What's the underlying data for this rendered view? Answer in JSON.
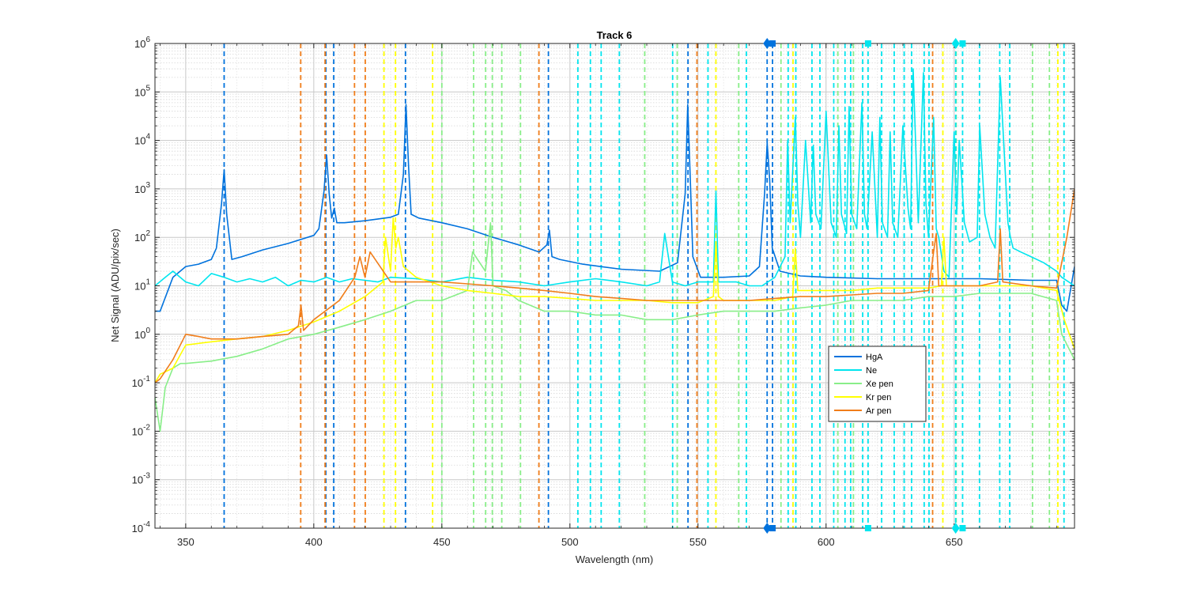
{
  "chart_data": {
    "type": "line",
    "title": "Track 6",
    "xlabel": "Wavelength (nm)",
    "ylabel": "Net Signal (ADU/pix/sec)",
    "xlim": [
      338,
      697
    ],
    "ylim": [
      0.0001,
      1000000
    ],
    "yscale": "log",
    "grid": true,
    "legend_position": "lower-right",
    "x_ticks": [
      {
        "value": 350,
        "label": "350"
      },
      {
        "value": 400,
        "label": "400"
      },
      {
        "value": 450,
        "label": "450"
      },
      {
        "value": 500,
        "label": "500"
      },
      {
        "value": 550,
        "label": "550"
      },
      {
        "value": 600,
        "label": "600"
      },
      {
        "value": 650,
        "label": "650"
      }
    ],
    "y_ticks": [
      {
        "value": 0.0001,
        "base": "10",
        "exp": "-4"
      },
      {
        "value": 0.001,
        "base": "10",
        "exp": "-3"
      },
      {
        "value": 0.01,
        "base": "10",
        "exp": "-2"
      },
      {
        "value": 0.1,
        "base": "10",
        "exp": "-1"
      },
      {
        "value": 1,
        "base": "10",
        "exp": "0"
      },
      {
        "value": 10,
        "base": "10",
        "exp": "1"
      },
      {
        "value": 100,
        "base": "10",
        "exp": "2"
      },
      {
        "value": 1000,
        "base": "10",
        "exp": "3"
      },
      {
        "value": 10000,
        "base": "10",
        "exp": "4"
      },
      {
        "value": 100000,
        "base": "10",
        "exp": "5"
      },
      {
        "value": 1000000,
        "base": "10",
        "exp": "6"
      }
    ],
    "series": [
      {
        "name": "HgA",
        "color": "#0072DD",
        "x": [
          338,
          340,
          345,
          350,
          355,
          360,
          362,
          364,
          365,
          366,
          368,
          372,
          380,
          390,
          400,
          402,
          404,
          405,
          406,
          407,
          408,
          409,
          412,
          420,
          430,
          433,
          435,
          436,
          437,
          438,
          441,
          450,
          460,
          470,
          480,
          488,
          491,
          492,
          493,
          496,
          505,
          520,
          535,
          542,
          545,
          546,
          547,
          548,
          551,
          560,
          570,
          574,
          576,
          577,
          578,
          579,
          582,
          590,
          600,
          620,
          640,
          660,
          680,
          690,
          692,
          694,
          697
        ],
        "y": [
          3,
          3,
          15,
          25,
          28,
          35,
          60,
          500,
          2500,
          300,
          35,
          40,
          55,
          75,
          110,
          150,
          900,
          5000,
          800,
          250,
          400,
          200,
          200,
          220,
          260,
          300,
          2000,
          55000,
          3000,
          300,
          250,
          200,
          150,
          100,
          70,
          50,
          70,
          140,
          40,
          35,
          28,
          22,
          20,
          30,
          800,
          55000,
          1500,
          40,
          15,
          15,
          16,
          25,
          800,
          9000,
          1500,
          60,
          20,
          16,
          15,
          14,
          14,
          14,
          13,
          13,
          4,
          3,
          25
        ]
      },
      {
        "name": "Ne",
        "color": "#00E5EE",
        "x": [
          338,
          342,
          345,
          350,
          355,
          360,
          365,
          370,
          375,
          380,
          385,
          390,
          395,
          400,
          405,
          410,
          415,
          420,
          425,
          430,
          440,
          450,
          460,
          470,
          480,
          490,
          500,
          510,
          520,
          530,
          535,
          537,
          540,
          545,
          550,
          556,
          557,
          558,
          565,
          570,
          575,
          580,
          584,
          585,
          586,
          588,
          589,
          590,
          592,
          594,
          595,
          596,
          598,
          600,
          602,
          604,
          605,
          606,
          608,
          609,
          610,
          612,
          614,
          615,
          616,
          618,
          620,
          621,
          622,
          624,
          625,
          626,
          628,
          630,
          632,
          633,
          634,
          636,
          638,
          639,
          640,
          642,
          643,
          644,
          646,
          648,
          650,
          651,
          652,
          654,
          656,
          659,
          660,
          662,
          664,
          666,
          668,
          671,
          672,
          673,
          676,
          680,
          685,
          690,
          692,
          697
        ],
        "y": [
          10,
          15,
          20,
          12,
          10,
          18,
          15,
          12,
          14,
          12,
          15,
          10,
          13,
          12,
          15,
          12,
          14,
          13,
          12,
          15,
          14,
          12,
          15,
          13,
          12,
          10,
          12,
          14,
          12,
          10,
          12,
          120,
          12,
          10,
          12,
          12,
          900,
          12,
          12,
          10,
          10,
          15,
          40,
          10000,
          200,
          30000,
          500,
          100,
          10000,
          200,
          8000,
          300,
          150,
          40000,
          200,
          100,
          20000,
          300,
          120,
          50000,
          300,
          150,
          60000,
          300,
          150,
          15000,
          100,
          30000,
          200,
          100,
          15000,
          200,
          100,
          20000,
          400,
          150,
          300000,
          200,
          250000,
          500,
          100,
          30000,
          150,
          100,
          20,
          15,
          15000,
          300,
          10000,
          200,
          80,
          100,
          20000,
          300,
          100,
          60,
          200000,
          200,
          100,
          60,
          50,
          40,
          30,
          20,
          15,
          10
        ]
      },
      {
        "name": "Xe pen",
        "color": "#88EE88",
        "x": [
          338,
          340,
          342,
          345,
          348,
          350,
          360,
          370,
          380,
          390,
          400,
          410,
          420,
          430,
          440,
          450,
          460,
          462,
          467,
          469,
          470,
          475,
          480,
          490,
          500,
          510,
          520,
          530,
          540,
          550,
          560,
          570,
          580,
          590,
          600,
          610,
          620,
          630,
          640,
          650,
          660,
          670,
          680,
          690,
          692,
          697
        ],
        "y": [
          0.05,
          0.01,
          0.08,
          0.2,
          0.25,
          0.25,
          0.28,
          0.35,
          0.5,
          0.8,
          1.0,
          1.4,
          2,
          3,
          5,
          5,
          8,
          50,
          20,
          200,
          10,
          8,
          5,
          3,
          3,
          2.5,
          2.5,
          2,
          2,
          2.5,
          3,
          3,
          3,
          3.5,
          4,
          5,
          5,
          5,
          6,
          6,
          7,
          7,
          7,
          5,
          1,
          0.3
        ]
      },
      {
        "name": "Kr pen",
        "color": "#FFFF00",
        "x": [
          338,
          340,
          345,
          350,
          360,
          370,
          380,
          390,
          400,
          410,
          420,
          427,
          428,
          430,
          431,
          432,
          433,
          435,
          440,
          450,
          460,
          470,
          480,
          490,
          500,
          510,
          520,
          530,
          540,
          550,
          556,
          557,
          558,
          560,
          570,
          580,
          587,
          588,
          589,
          600,
          610,
          620,
          630,
          640,
          645,
          646,
          647,
          650,
          660,
          670,
          680,
          690,
          693,
          697
        ],
        "y": [
          0.1,
          0.15,
          0.2,
          0.6,
          0.7,
          0.8,
          0.9,
          1.2,
          1.8,
          3,
          6,
          12,
          100,
          20,
          250,
          60,
          100,
          25,
          15,
          10,
          8,
          7,
          6,
          6,
          5.5,
          5,
          5,
          5,
          4.5,
          4.5,
          6,
          80,
          6,
          5,
          5,
          5,
          6,
          60,
          8,
          8,
          8,
          9,
          9,
          9,
          10,
          100,
          10,
          10,
          10,
          10,
          10,
          8,
          2,
          0.5
        ]
      },
      {
        "name": "Ar pen",
        "color": "#F07D1A",
        "x": [
          338,
          340,
          345,
          350,
          355,
          360,
          370,
          380,
          390,
          394,
          395,
          396,
          400,
          410,
          416,
          418,
          420,
          422,
          430,
          440,
          450,
          460,
          470,
          480,
          490,
          500,
          510,
          520,
          530,
          540,
          550,
          560,
          570,
          580,
          590,
          600,
          610,
          620,
          630,
          640,
          642,
          643,
          644,
          650,
          660,
          667,
          668,
          669,
          680,
          690,
          694,
          697
        ],
        "y": [
          0.1,
          0.12,
          0.3,
          1.0,
          0.9,
          0.8,
          0.8,
          0.9,
          1.0,
          1.5,
          4,
          1.2,
          2,
          5,
          15,
          40,
          15,
          50,
          12,
          12,
          12,
          11,
          10,
          9,
          8,
          7,
          6,
          5.5,
          5,
          5,
          5,
          5,
          5,
          5.5,
          6,
          6,
          6.5,
          7,
          7,
          8,
          50,
          120,
          10,
          10,
          10,
          12,
          150,
          12,
          10,
          9,
          100,
          1000
        ]
      }
    ],
    "reference_lines": [
      {
        "x": 365,
        "color": "#0072DD"
      },
      {
        "x": 404.7,
        "color": "#0072DD"
      },
      {
        "x": 407.8,
        "color": "#0072DD"
      },
      {
        "x": 435.8,
        "color": "#0072DD"
      },
      {
        "x": 491.6,
        "color": "#0072DD"
      },
      {
        "x": 546.1,
        "color": "#0072DD"
      },
      {
        "x": 577,
        "color": "#0072DD"
      },
      {
        "x": 579.1,
        "color": "#0072DD"
      },
      {
        "x": 394.9,
        "color": "#F07D1A"
      },
      {
        "x": 404.4,
        "color": "#F07D1A"
      },
      {
        "x": 415.9,
        "color": "#F07D1A"
      },
      {
        "x": 420.1,
        "color": "#F07D1A"
      },
      {
        "x": 487.9,
        "color": "#F07D1A"
      },
      {
        "x": 549.6,
        "color": "#F07D1A"
      },
      {
        "x": 641.6,
        "color": "#F07D1A"
      },
      {
        "x": 427.4,
        "color": "#FFFF00"
      },
      {
        "x": 431.9,
        "color": "#FFFF00"
      },
      {
        "x": 446.4,
        "color": "#FFFF00"
      },
      {
        "x": 557,
        "color": "#FFFF00"
      },
      {
        "x": 587.1,
        "color": "#FFFF00"
      },
      {
        "x": 645.6,
        "color": "#FFFF00"
      },
      {
        "x": 690.5,
        "color": "#FFFF00"
      },
      {
        "x": 450,
        "color": "#88EE88"
      },
      {
        "x": 462.4,
        "color": "#88EE88"
      },
      {
        "x": 467.1,
        "color": "#88EE88"
      },
      {
        "x": 469.7,
        "color": "#88EE88"
      },
      {
        "x": 473.4,
        "color": "#88EE88"
      },
      {
        "x": 480.7,
        "color": "#88EE88"
      },
      {
        "x": 529.2,
        "color": "#88EE88"
      },
      {
        "x": 541.9,
        "color": "#88EE88"
      },
      {
        "x": 565.9,
        "color": "#88EE88"
      },
      {
        "x": 582.4,
        "color": "#88EE88"
      },
      {
        "x": 604.6,
        "color": "#88EE88"
      },
      {
        "x": 610.7,
        "color": "#88EE88"
      },
      {
        "x": 650.8,
        "color": "#88EE88"
      },
      {
        "x": 680.6,
        "color": "#88EE88"
      },
      {
        "x": 687.2,
        "color": "#88EE88"
      },
      {
        "x": 503.1,
        "color": "#00E5EE"
      },
      {
        "x": 508.0,
        "color": "#00E5EE"
      },
      {
        "x": 512.2,
        "color": "#00E5EE"
      },
      {
        "x": 519.3,
        "color": "#00E5EE"
      },
      {
        "x": 540.1,
        "color": "#00E5EE"
      },
      {
        "x": 553.9,
        "color": "#00E5EE"
      },
      {
        "x": 568.9,
        "color": "#00E5EE"
      },
      {
        "x": 585.2,
        "color": "#00E5EE"
      },
      {
        "x": 588.2,
        "color": "#00E5EE"
      },
      {
        "x": 594.5,
        "color": "#00E5EE"
      },
      {
        "x": 597.6,
        "color": "#00E5EE"
      },
      {
        "x": 603.0,
        "color": "#00E5EE"
      },
      {
        "x": 607.4,
        "color": "#00E5EE"
      },
      {
        "x": 609.6,
        "color": "#00E5EE"
      },
      {
        "x": 614.3,
        "color": "#00E5EE"
      },
      {
        "x": 616.4,
        "color": "#00E5EE"
      },
      {
        "x": 621.7,
        "color": "#00E5EE"
      },
      {
        "x": 626.6,
        "color": "#00E5EE"
      },
      {
        "x": 630.5,
        "color": "#00E5EE"
      },
      {
        "x": 633.4,
        "color": "#00E5EE"
      },
      {
        "x": 638.3,
        "color": "#00E5EE"
      },
      {
        "x": 640.2,
        "color": "#00E5EE"
      },
      {
        "x": 650.6,
        "color": "#00E5EE"
      },
      {
        "x": 653.3,
        "color": "#00E5EE"
      },
      {
        "x": 659.9,
        "color": "#00E5EE"
      },
      {
        "x": 667.8,
        "color": "#00E5EE"
      },
      {
        "x": 671.7,
        "color": "#00E5EE"
      },
      {
        "x": 692.9,
        "color": "#00E5EE"
      }
    ],
    "markers": [
      {
        "x": 577,
        "shape": "diamond",
        "color": "#0072DD"
      },
      {
        "x": 579.1,
        "shape": "square",
        "color": "#0072DD"
      },
      {
        "x": 616.4,
        "shape": "square",
        "color": "#00E5EE"
      },
      {
        "x": 650.6,
        "shape": "diamond",
        "color": "#00E5EE"
      },
      {
        "x": 653.3,
        "shape": "square",
        "color": "#00E5EE"
      }
    ]
  }
}
